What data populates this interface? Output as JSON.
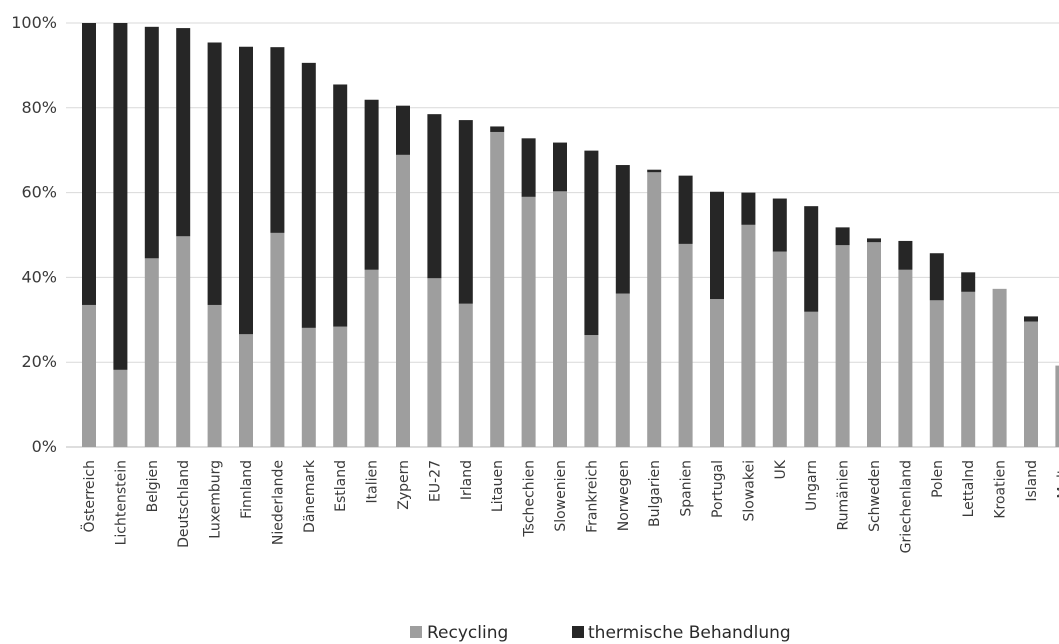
{
  "chart_data": {
    "type": "bar",
    "stacked": true,
    "categories": [
      "Österreich",
      "Lichtenstein",
      "Belgien",
      "Deutschland",
      "Luxemburg",
      "Finnland",
      "Niederlande",
      "Dänemark",
      "Estland",
      "Italien",
      "Zypern",
      "EU-27",
      "Irland",
      "Litauen",
      "Tschechien",
      "Slowenien",
      "Frankreich",
      "Norwegen",
      "Bulgarien",
      "Spanien",
      "Portugal",
      "Slowakei",
      "UK",
      "Ungarn",
      "Rumänien",
      "Schweden",
      "Griechenland",
      "Polen",
      "Lettalnd",
      "Kroatien",
      "Island",
      "Malta"
    ],
    "series": [
      {
        "name": "Recycling",
        "color": "#9e9e9e",
        "values": [
          33.5,
          18.2,
          44.5,
          49.7,
          33.5,
          26.6,
          50.5,
          28.1,
          28.4,
          41.8,
          68.9,
          39.8,
          33.8,
          74.3,
          59.0,
          60.3,
          26.4,
          36.2,
          64.8,
          47.9,
          34.9,
          52.4,
          46.1,
          31.9,
          47.6,
          48.3,
          41.8,
          34.6,
          36.6,
          37.3,
          29.6,
          19.2
        ]
      },
      {
        "name": "thermische Behandlung",
        "color": "#262626",
        "values": [
          66.5,
          81.8,
          54.6,
          49.1,
          61.9,
          67.8,
          43.8,
          62.5,
          57.1,
          40.1,
          11.6,
          38.7,
          43.3,
          1.3,
          13.8,
          11.5,
          43.5,
          30.3,
          0.6,
          16.1,
          25.3,
          7.6,
          12.5,
          24.9,
          4.2,
          0.9,
          6.8,
          11.1,
          4.6,
          0.0,
          1.2,
          0.0
        ]
      }
    ],
    "ylim": [
      0,
      100
    ],
    "yticks": [
      "0%",
      "20%",
      "40%",
      "60%",
      "80%",
      "100%"
    ],
    "grid": true,
    "legend_position": "bottom"
  }
}
